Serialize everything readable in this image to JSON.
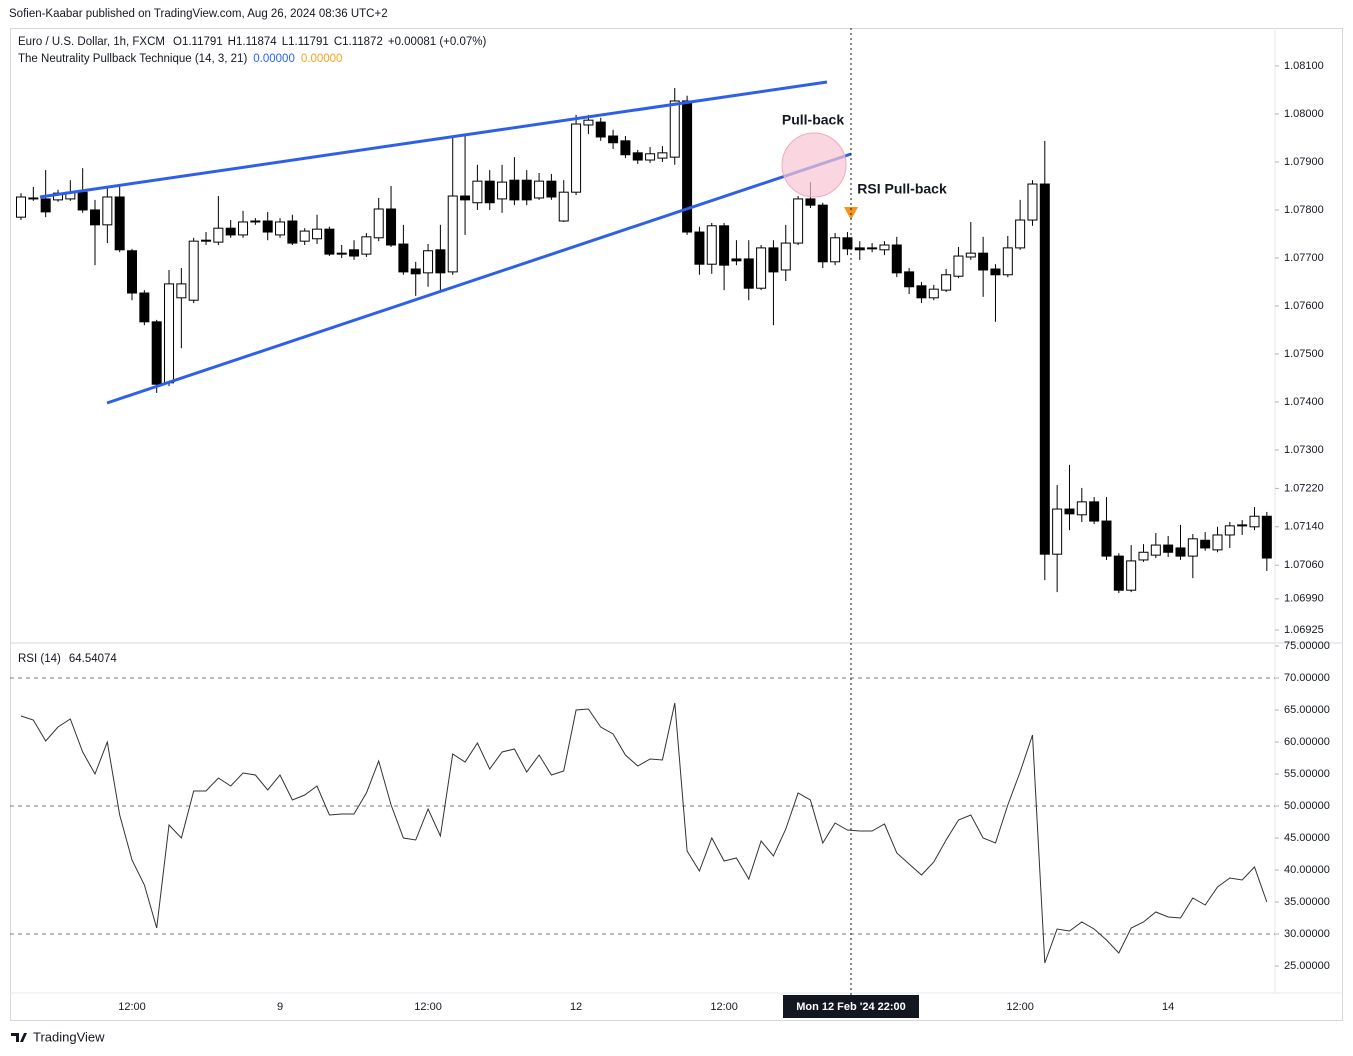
{
  "header": "Sofien-Kaabar published on TradingView.com, Aug 26, 2024 08:36 UTC+2",
  "footer": "TradingView",
  "chart_data": [
    {
      "type": "candlestick",
      "legend": {
        "symbol": "Euro / U.S. Dollar, 1h, FXCM",
        "ohlc": [
          "O1.11791",
          "H1.11874",
          "L1.11791",
          "C1.11872",
          "+0.00081 (+0.07%)"
        ],
        "indicator": "The Neutrality Pullback Technique (14, 3, 21)",
        "indicator_values": [
          {
            "text": "0.00000",
            "color": "#2962ff"
          },
          {
            "text": "0.00000",
            "color": "#f7a21b"
          }
        ]
      },
      "annotations": [
        "Pull-back",
        "RSI Pull-back"
      ],
      "crosshair_label": "Mon 12 Feb '24 22:00",
      "up_color": "#ffffff",
      "down_color": "#000000",
      "border_color": "#000000",
      "categories": [
        null,
        null,
        null,
        null,
        null,
        null,
        null,
        null,
        null,
        "12:00",
        null,
        null,
        null,
        null,
        null,
        null,
        null,
        null,
        null,
        null,
        null,
        "9",
        null,
        null,
        null,
        null,
        null,
        null,
        null,
        null,
        null,
        null,
        null,
        "12:00",
        null,
        null,
        null,
        null,
        null,
        null,
        null,
        null,
        null,
        null,
        null,
        "12",
        null,
        null,
        null,
        null,
        null,
        null,
        null,
        null,
        null,
        null,
        null,
        "12:00",
        null,
        null,
        null,
        null,
        null,
        null,
        null,
        null,
        null,
        null,
        null,
        null,
        null,
        null,
        null,
        null,
        null,
        null,
        null,
        null,
        null,
        null,
        null,
        "12:00",
        null,
        null,
        null,
        null,
        null,
        null,
        null,
        null,
        null,
        null,
        null,
        "14",
        null,
        null,
        null,
        null,
        null,
        null,
        null,
        null
      ],
      "open": [
        1.07785,
        1.07825,
        1.07823,
        1.07821,
        1.07823,
        1.07837,
        1.078,
        1.07769,
        1.07827,
        1.07715,
        1.07627,
        1.07567,
        1.0744,
        1.07617,
        1.07612,
        1.07737,
        1.07733,
        1.07762,
        1.07748,
        1.07777,
        1.07777,
        1.07748,
        1.07777,
        1.07735,
        1.0774,
        1.0776,
        1.0771,
        1.07717,
        1.07708,
        1.07742,
        1.07802,
        1.07729,
        1.07677,
        1.07669,
        1.07717,
        1.07671,
        1.07829,
        1.07815,
        1.0786,
        1.07823,
        1.07862,
        1.07862,
        1.07825,
        1.0786,
        1.07777,
        1.07837,
        1.07977,
        1.07983,
        1.07954,
        1.07944,
        1.07919,
        1.07904,
        1.07908,
        1.0791,
        1.08027,
        1.07754,
        1.07687,
        1.07767,
        1.07698,
        1.07698,
        1.07637,
        1.07721,
        1.07675,
        1.07731,
        1.07823,
        1.0781,
        1.07692,
        1.07742,
        1.07721,
        1.07721,
        1.07717,
        1.07727,
        1.07671,
        1.07642,
        1.07617,
        1.07633,
        1.07662,
        1.07702,
        1.0771,
        1.07677,
        1.07665,
        1.07721,
        1.07779,
        1.07854,
        1.07083,
        1.07177,
        1.07165,
        1.07192,
        1.07152,
        1.07079,
        1.07008,
        1.07071,
        1.07081,
        1.07102,
        1.07096,
        1.07079,
        1.07112,
        1.07092,
        1.07123,
        1.07142,
        1.0714,
        1.07162
      ],
      "high": [
        1.07835,
        1.07848,
        1.07883,
        1.07842,
        1.07862,
        1.07887,
        1.07821,
        1.07846,
        1.07852,
        1.07719,
        1.07633,
        1.07571,
        1.07675,
        1.07679,
        1.07742,
        1.07754,
        1.07829,
        1.07779,
        1.07798,
        1.07783,
        1.07796,
        1.07783,
        1.0779,
        1.07762,
        1.0779,
        1.07765,
        1.07727,
        1.07737,
        1.07752,
        1.07825,
        1.0785,
        1.07769,
        1.07692,
        1.07729,
        1.07769,
        1.0795,
        1.07956,
        1.07894,
        1.07883,
        1.07894,
        1.0791,
        1.07883,
        1.07877,
        1.07875,
        1.07862,
        1.07998,
        1.07998,
        1.07992,
        1.07967,
        1.07954,
        1.07925,
        1.07931,
        1.07933,
        1.08054,
        1.08038,
        1.07765,
        1.07773,
        1.07773,
        1.07737,
        1.07737,
        1.07727,
        1.07737,
        1.07769,
        1.07829,
        1.07858,
        1.07815,
        1.07752,
        1.07754,
        1.07735,
        1.07731,
        1.07735,
        1.07744,
        1.07679,
        1.0765,
        1.07644,
        1.07677,
        1.07723,
        1.07775,
        1.07744,
        1.07687,
        1.07746,
        1.07821,
        1.07862,
        1.07944,
        1.07227,
        1.07269,
        1.07221,
        1.07202,
        1.07202,
        1.07085,
        1.07102,
        1.07104,
        1.07127,
        1.07121,
        1.07144,
        1.07125,
        1.07129,
        1.0714,
        1.0715,
        1.07154,
        1.07181,
        1.07171
      ],
      "low": [
        1.07779,
        1.07819,
        1.07785,
        1.07817,
        1.07819,
        1.07794,
        1.07685,
        1.07731,
        1.07712,
        1.07612,
        1.0756,
        1.07419,
        1.07433,
        1.07512,
        1.07606,
        1.07727,
        1.07727,
        1.07742,
        1.07742,
        1.07769,
        1.07737,
        1.07742,
        1.07727,
        1.07727,
        1.07729,
        1.07704,
        1.077,
        1.07696,
        1.07702,
        1.07735,
        1.07723,
        1.07665,
        1.07621,
        1.0764,
        1.07631,
        1.07665,
        1.07748,
        1.078,
        1.078,
        1.07794,
        1.0781,
        1.0781,
        1.07821,
        1.07821,
        1.07775,
        1.07831,
        1.07958,
        1.07944,
        1.07927,
        1.07908,
        1.07896,
        1.07898,
        1.079,
        1.07894,
        1.07748,
        1.07665,
        1.07667,
        1.07633,
        1.07685,
        1.07612,
        1.07633,
        1.0756,
        1.07652,
        1.07727,
        1.07804,
        1.07679,
        1.07685,
        1.07706,
        1.07696,
        1.07712,
        1.07706,
        1.0766,
        1.07625,
        1.07606,
        1.07612,
        1.07629,
        1.07658,
        1.07696,
        1.07619,
        1.07567,
        1.0766,
        1.07717,
        1.07767,
        1.07029,
        1.07004,
        1.07133,
        1.0715,
        1.07146,
        1.07071,
        1.07002,
        1.07004,
        1.07067,
        1.07075,
        1.07077,
        1.07071,
        1.07033,
        1.0709,
        1.07087,
        1.07096,
        1.07123,
        1.07133,
        1.07048
      ],
      "close": [
        1.07827,
        1.07823,
        1.07796,
        1.07835,
        1.07837,
        1.078,
        1.07769,
        1.07827,
        1.07717,
        1.07627,
        1.07567,
        1.07437,
        1.07646,
        1.07646,
        1.07735,
        1.07735,
        1.07762,
        1.07748,
        1.07775,
        1.07775,
        1.07754,
        1.07775,
        1.07731,
        1.07756,
        1.0776,
        1.07708,
        1.07708,
        1.07704,
        1.07744,
        1.07802,
        1.07727,
        1.07671,
        1.07667,
        1.07715,
        1.07669,
        1.07829,
        1.07821,
        1.0786,
        1.07815,
        1.07858,
        1.07821,
        1.07821,
        1.0786,
        1.07827,
        1.07837,
        1.07979,
        1.07987,
        1.07952,
        1.0794,
        1.07915,
        1.07904,
        1.07917,
        1.07919,
        1.08027,
        1.07754,
        1.07687,
        1.07767,
        1.07685,
        1.07694,
        1.07637,
        1.07721,
        1.07671,
        1.07731,
        1.07823,
        1.0781,
        1.07692,
        1.07742,
        1.07719,
        1.07717,
        1.07719,
        1.07727,
        1.07669,
        1.0764,
        1.07617,
        1.07635,
        1.07665,
        1.07704,
        1.0771,
        1.07675,
        1.07665,
        1.07721,
        1.07779,
        1.07854,
        1.07083,
        1.07177,
        1.07167,
        1.07192,
        1.07152,
        1.07079,
        1.07008,
        1.07069,
        1.07087,
        1.07102,
        1.07087,
        1.07079,
        1.07115,
        1.07096,
        1.07123,
        1.07142,
        1.07144,
        1.07162,
        1.07075
      ],
      "ylim": [
        1.06898,
        1.08179
      ],
      "yticks": [
        {
          "value": 1.081,
          "label": "1.08100"
        },
        {
          "value": 1.08,
          "label": "1.08000"
        },
        {
          "value": 1.079,
          "label": "1.07900"
        },
        {
          "value": 1.078,
          "label": "1.07800"
        },
        {
          "value": 1.077,
          "label": "1.07700"
        },
        {
          "value": 1.076,
          "label": "1.07600"
        },
        {
          "value": 1.075,
          "label": "1.07500"
        },
        {
          "value": 1.074,
          "label": "1.07400"
        },
        {
          "value": 1.073,
          "label": "1.07300"
        },
        {
          "value": 1.0722,
          "label": "1.07220"
        },
        {
          "value": 1.0714,
          "label": "1.07140"
        },
        {
          "value": 1.0706,
          "label": "1.07060"
        },
        {
          "value": 1.0699,
          "label": "1.06990"
        },
        1.06925
      ],
      "grid": false
    },
    {
      "type": "line",
      "title": "RSI (14)",
      "last_value": "64.54074",
      "color": "#333333",
      "values": [
        64.06,
        63.44,
        60.16,
        62.34,
        63.59,
        58.44,
        55.0,
        60.0,
        48.59,
        41.56,
        37.66,
        30.94,
        47.03,
        45.0,
        52.34,
        52.34,
        54.38,
        53.13,
        55.16,
        54.84,
        52.5,
        54.84,
        50.94,
        51.72,
        53.13,
        48.59,
        48.75,
        48.75,
        52.03,
        57.03,
        50.16,
        45.0,
        44.69,
        49.53,
        45.31,
        58.13,
        56.88,
        59.84,
        55.78,
        58.44,
        58.91,
        55.31,
        57.97,
        54.84,
        55.47,
        65.0,
        65.16,
        62.34,
        61.25,
        57.97,
        56.25,
        57.34,
        57.19,
        66.09,
        42.97,
        39.84,
        45.0,
        41.41,
        41.88,
        38.59,
        44.53,
        42.19,
        46.41,
        52.03,
        50.94,
        44.22,
        47.34,
        46.25,
        46.09,
        46.09,
        47.19,
        42.66,
        40.94,
        39.22,
        41.25,
        44.69,
        47.81,
        48.59,
        45.0,
        44.22,
        50.16,
        55.31,
        61.09,
        25.47,
        30.78,
        30.47,
        31.88,
        30.78,
        29.06,
        27.03,
        30.94,
        31.88,
        33.44,
        32.66,
        32.5,
        35.63,
        34.53,
        37.34,
        38.75,
        38.44,
        40.47,
        35.0
      ],
      "levels": [
        70,
        50,
        30
      ],
      "ylim": [
        21.25,
        75.47
      ],
      "yticks": [
        {
          "value": 75,
          "label": "75.00000"
        },
        {
          "value": 70,
          "label": "70.00000"
        },
        {
          "value": 65,
          "label": "65.00000"
        },
        {
          "value": 60,
          "label": "60.00000"
        },
        {
          "value": 55,
          "label": "55.00000"
        },
        {
          "value": 50,
          "label": "50.00000"
        },
        {
          "value": 45,
          "label": "45.00000"
        },
        {
          "value": 40,
          "label": "40.00000"
        },
        {
          "value": 35,
          "label": "35.00000"
        },
        {
          "value": 30,
          "label": "30.00000"
        },
        {
          "value": 25,
          "label": "25.00000"
        }
      ],
      "grid": false
    }
  ]
}
